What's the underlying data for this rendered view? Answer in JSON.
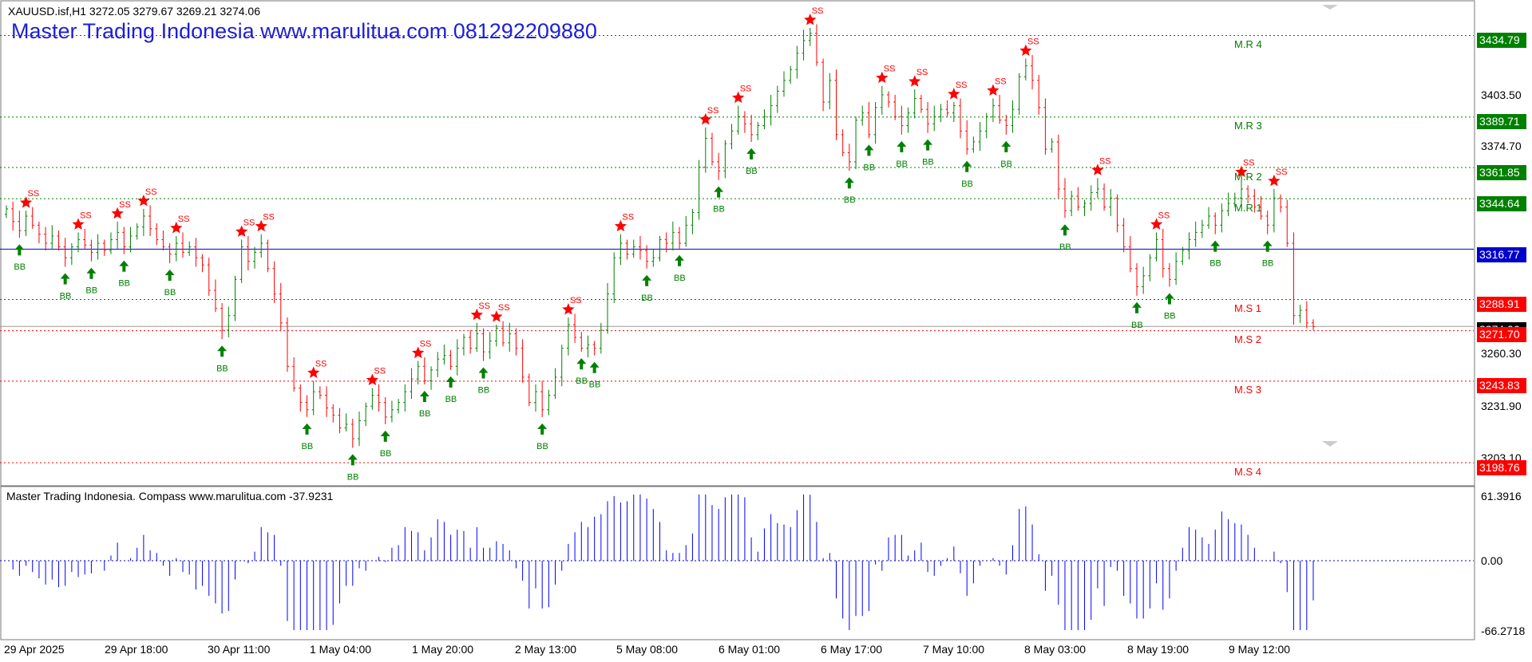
{
  "header": {
    "symbol_line": "XAUUSD.isf,H1  3272.05 3279.67 3269.21 3274.06",
    "brand": "Master Trading Indonesia www.marulitua.com 081292209880",
    "indicator_line": "Master Trading Indonesia. Compass www.marulitua.com -37.9231"
  },
  "colors": {
    "bull": "#008000",
    "bear": "#ff0000",
    "blue_line": "#0000cc",
    "indicator_hist": "#0000ff",
    "resistance_tag": "#008000",
    "support_tag": "#ff0000"
  },
  "price_axis": {
    "labels": [
      "3403.50",
      "3374.70",
      "3260.30",
      "3231.90",
      "3203.10"
    ],
    "current_price": "3274.06",
    "blue_level": "3316.77",
    "levels": [
      {
        "name": "M.R 4",
        "price": "3434.79",
        "type": "resistance"
      },
      {
        "name": "M.R 3",
        "price": "3389.71",
        "type": "resistance"
      },
      {
        "name": "M.R 2",
        "price": "3361.85",
        "type": "resistance"
      },
      {
        "name": "M.R 1",
        "price": "3344.64",
        "type": "resistance"
      },
      {
        "name": "M.S 1",
        "price": "3288.91",
        "type": "support"
      },
      {
        "name": "M.S 2",
        "price": "3271.70",
        "type": "support"
      },
      {
        "name": "M.S 3",
        "price": "3243.83",
        "type": "support"
      },
      {
        "name": "M.S 4",
        "price": "3198.76",
        "type": "support"
      }
    ]
  },
  "indicator_axis": {
    "labels": [
      "61.3916",
      "0.00",
      "-66.2718"
    ]
  },
  "time_axis": [
    "29 Apr 2025",
    "29 Apr 18:00",
    "30 Apr 11:00",
    "1 May 04:00",
    "1 May 20:00",
    "2 May 13:00",
    "5 May 08:00",
    "6 May 01:00",
    "6 May 17:00",
    "7 May 10:00",
    "8 May 03:00",
    "8 May 19:00",
    "9 May 12:00"
  ],
  "chart_data": {
    "type": "candlestick",
    "symbol": "XAUUSD.isf",
    "timeframe": "H1",
    "last_ohlc": {
      "open": 3272.05,
      "high": 3279.67,
      "low": 3269.21,
      "close": 3274.06
    },
    "y_range": [
      3190,
      3450
    ],
    "closes": [
      3339,
      3332,
      3327,
      3335,
      3330,
      3325,
      3320,
      3324,
      3318,
      3312,
      3318,
      3322,
      3319,
      3315,
      3320,
      3316,
      3322,
      3326,
      3318,
      3324,
      3329,
      3335,
      3328,
      3322,
      3318,
      3314,
      3320,
      3315,
      3318,
      3312,
      3308,
      3294,
      3284,
      3272,
      3280,
      3300,
      3318,
      3310,
      3315,
      3320,
      3306,
      3292,
      3276,
      3252,
      3240,
      3232,
      3228,
      3238,
      3236,
      3229,
      3225,
      3218,
      3220,
      3212,
      3222,
      3230,
      3236,
      3232,
      3224,
      3228,
      3232,
      3238,
      3245,
      3252,
      3244,
      3250,
      3256,
      3258,
      3252,
      3262,
      3268,
      3262,
      3270,
      3260,
      3266,
      3273,
      3265,
      3270,
      3262,
      3246,
      3232,
      3238,
      3228,
      3236,
      3246,
      3262,
      3275,
      3268,
      3262,
      3264,
      3262,
      3272,
      3292,
      3312,
      3320,
      3314,
      3318,
      3316,
      3310,
      3312,
      3322,
      3320,
      3326,
      3320,
      3330,
      3337,
      3362,
      3378,
      3365,
      3360,
      3375,
      3382,
      3390,
      3386,
      3380,
      3385,
      3390,
      3396,
      3404,
      3410,
      3416,
      3425,
      3432,
      3436,
      3420,
      3398,
      3410,
      3380,
      3370,
      3365,
      3388,
      3392,
      3380,
      3395,
      3402,
      3398,
      3390,
      3385,
      3392,
      3400,
      3394,
      3386,
      3390,
      3394,
      3392,
      3396,
      3382,
      3372,
      3376,
      3382,
      3390,
      3396,
      3388,
      3385,
      3394,
      3412,
      3418,
      3410,
      3395,
      3372,
      3376,
      3350,
      3338,
      3346,
      3340,
      3342,
      3348,
      3350,
      3340,
      3345,
      3330,
      3318,
      3306,
      3296,
      3302,
      3312,
      3322,
      3306,
      3300,
      3310,
      3316,
      3322,
      3326,
      3330,
      3335,
      3330,
      3338,
      3342,
      3345,
      3350,
      3346,
      3340,
      3335,
      3330,
      3345,
      3340,
      3320,
      3280,
      3283,
      3276,
      3274
    ],
    "sell_signal_label": "SS",
    "buy_signal_label": "BB",
    "indicator": {
      "name": "Compass",
      "last_value": -37.9231,
      "range": [
        -66.2718,
        61.3916
      ]
    }
  }
}
